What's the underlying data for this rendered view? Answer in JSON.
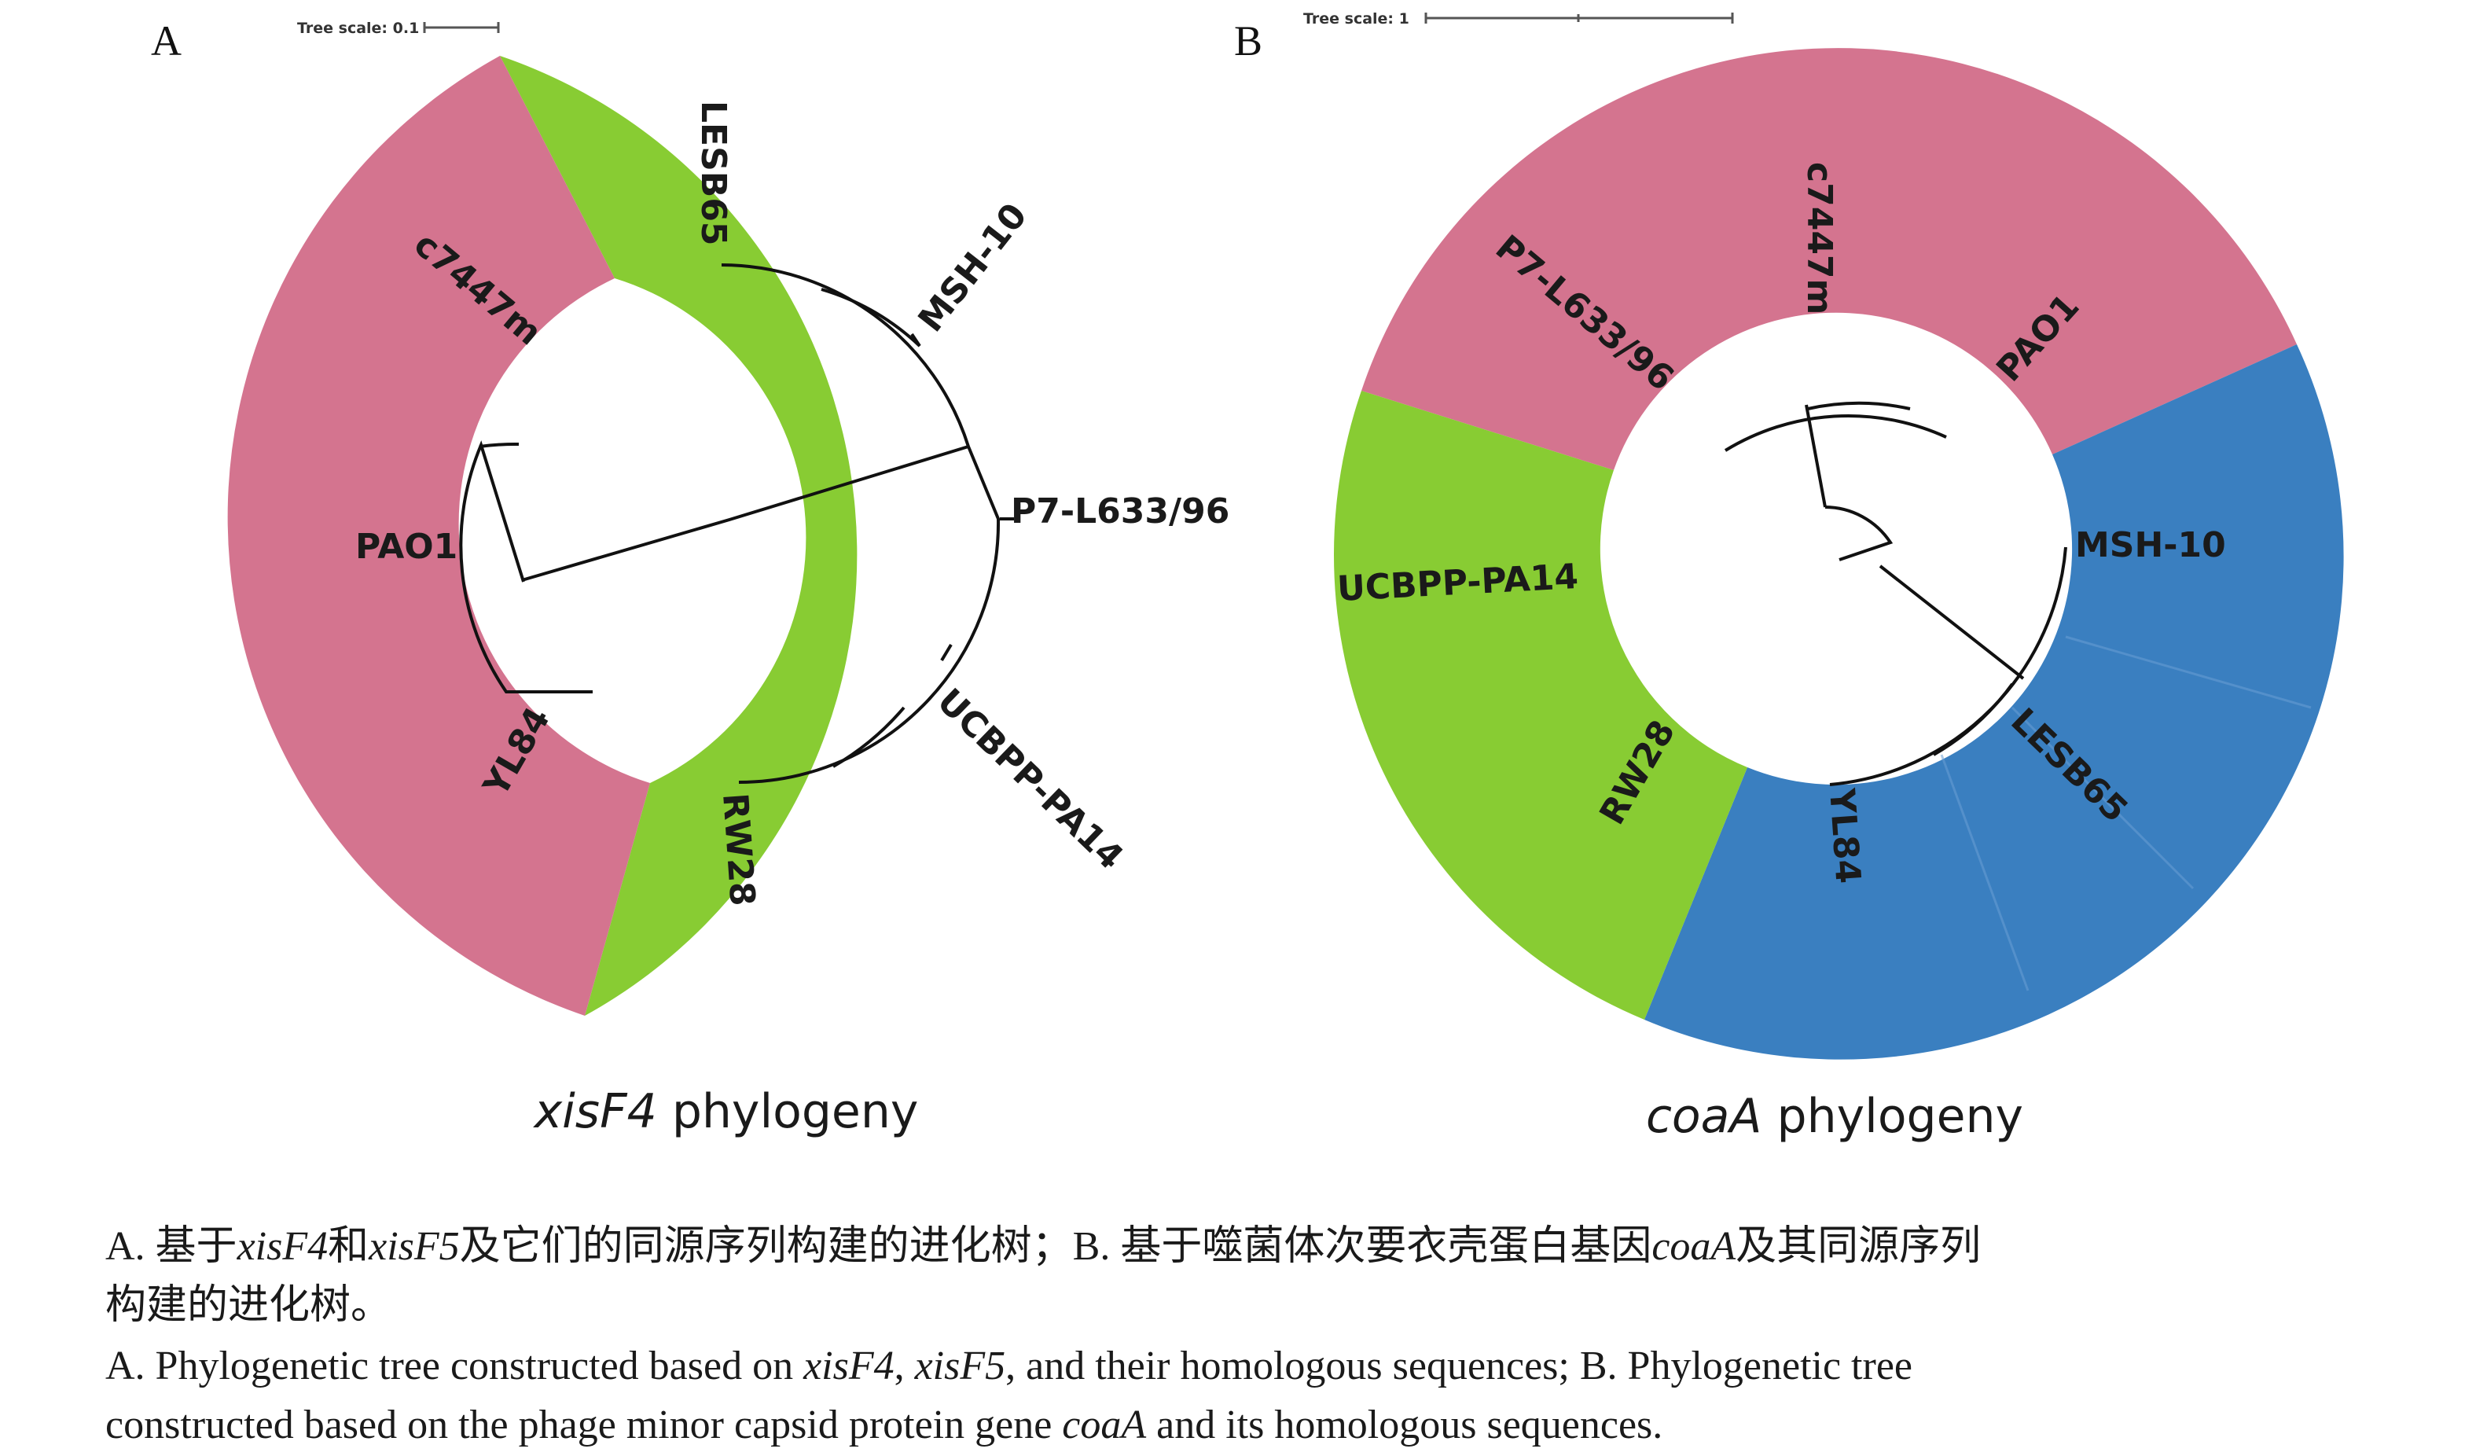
{
  "panels": [
    {
      "letter": "A",
      "scale_label": "Tree scale: 0.1",
      "title_italic": "xisF4",
      "title_rest": " phylogeny",
      "ring_inner": "#d4748f",
      "ring_outer": "#88cc33",
      "leaves": [
        "LESB65",
        "MSH-10",
        "P7-L633/96",
        "UCBPP-PA14",
        "RW28",
        "YL84",
        "PAO1",
        "c7447m"
      ]
    },
    {
      "letter": "B",
      "scale_label": "Tree scale: 1",
      "title_italic": "coaA",
      "title_rest": " phylogeny",
      "ring_pink": "#d4748f",
      "ring_blue": "#3a7fc0",
      "ring_green": "#88cc33",
      "leaves": [
        "c7447m",
        "PAO1",
        "MSH-10",
        "LESB65",
        "YL84",
        "RW28",
        "UCBPP-PA14",
        "P7-L633/96"
      ]
    }
  ],
  "caption": {
    "zh_line1": [
      {
        "t": "A. 基于"
      },
      {
        "t": "xisF4",
        "i": true
      },
      {
        "t": "和"
      },
      {
        "t": "xisF5",
        "i": true
      },
      {
        "t": "及它们的同源序列构建的进化树；B. 基于噬菌体次要衣壳蛋白基因"
      },
      {
        "t": "coaA",
        "i": true
      },
      {
        "t": "及其同源序列"
      }
    ],
    "zh_line2": [
      {
        "t": "构建的进化树。"
      }
    ],
    "en_line1": [
      {
        "t": "A. Phylogenetic tree constructed based on "
      },
      {
        "t": "xisF4",
        "i": true
      },
      {
        "t": ", "
      },
      {
        "t": "xisF5",
        "i": true
      },
      {
        "t": ", and their homologous sequences; B. Phylogenetic tree"
      }
    ],
    "en_line2": [
      {
        "t": "constructed based on the phage minor capsid protein gene "
      },
      {
        "t": "coaA",
        "i": true
      },
      {
        "t": " and its homologous sequences."
      }
    ]
  }
}
